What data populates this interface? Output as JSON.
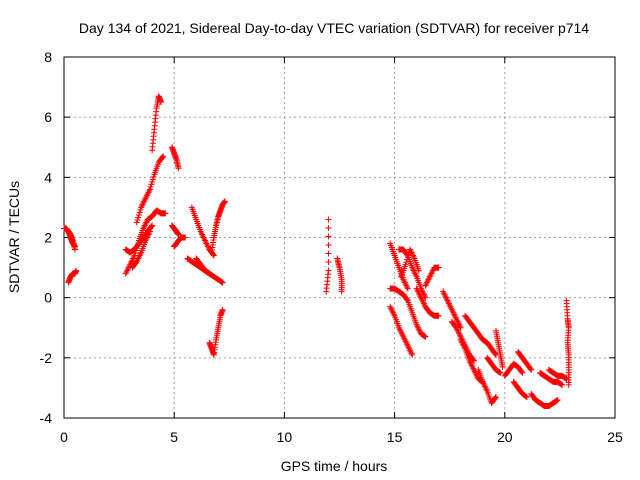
{
  "chart_data": {
    "type": "scatter",
    "title": "Day 134 of 2021, Sidereal Day-to-day VTEC variation (SDTVAR) for receiver p714",
    "xlabel": "GPS time / hours",
    "ylabel": "SDTVAR / TECUs",
    "xlim": [
      0,
      25
    ],
    "ylim": [
      -4,
      8
    ],
    "xticks": [
      0,
      5,
      10,
      15,
      20,
      25
    ],
    "yticks": [
      -4,
      -2,
      0,
      2,
      4,
      6,
      8
    ],
    "grid": true,
    "marker": "+",
    "series": [
      {
        "name": "SDTVAR",
        "color": "#ff0000",
        "segments": [
          [
            [
              0.0,
              2.3
            ],
            [
              0.1,
              2.3
            ],
            [
              0.2,
              2.2
            ],
            [
              0.3,
              2.1
            ],
            [
              0.4,
              1.9
            ],
            [
              0.5,
              1.6
            ]
          ],
          [
            [
              0.2,
              2.2
            ],
            [
              0.3,
              2.0
            ],
            [
              0.4,
              1.8
            ],
            [
              0.5,
              1.7
            ]
          ],
          [
            [
              0.2,
              0.5
            ],
            [
              0.3,
              0.7
            ],
            [
              0.4,
              0.8
            ],
            [
              0.5,
              0.8
            ],
            [
              0.55,
              0.9
            ]
          ],
          [
            [
              2.8,
              1.6
            ],
            [
              3.0,
              1.5
            ],
            [
              3.2,
              1.6
            ],
            [
              3.4,
              1.8
            ],
            [
              3.6,
              2.0
            ],
            [
              3.8,
              2.2
            ],
            [
              4.0,
              2.4
            ]
          ],
          [
            [
              2.8,
              0.8
            ],
            [
              3.0,
              1.1
            ],
            [
              3.2,
              1.4
            ],
            [
              3.4,
              1.9
            ],
            [
              3.6,
              2.3
            ],
            [
              3.8,
              2.6
            ],
            [
              4.0,
              2.7
            ],
            [
              4.2,
              2.9
            ],
            [
              4.4,
              2.8
            ],
            [
              4.6,
              2.8
            ]
          ],
          [
            [
              3.3,
              2.5
            ],
            [
              3.5,
              3.0
            ],
            [
              3.7,
              3.3
            ],
            [
              3.9,
              3.6
            ],
            [
              4.1,
              4.1
            ],
            [
              4.3,
              4.5
            ],
            [
              4.5,
              4.7
            ]
          ],
          [
            [
              4.0,
              4.9
            ],
            [
              4.1,
              5.6
            ],
            [
              4.2,
              6.3
            ],
            [
              4.3,
              6.7
            ],
            [
              4.4,
              6.5
            ]
          ],
          [
            [
              3.1,
              1.0
            ],
            [
              3.3,
              1.2
            ],
            [
              3.5,
              1.5
            ],
            [
              3.7,
              1.9
            ],
            [
              3.9,
              2.2
            ]
          ],
          [
            [
              4.9,
              5.0
            ],
            [
              5.0,
              4.8
            ],
            [
              5.1,
              4.6
            ],
            [
              5.2,
              4.3
            ]
          ],
          [
            [
              4.9,
              2.4
            ],
            [
              5.0,
              2.3
            ],
            [
              5.1,
              2.2
            ],
            [
              5.2,
              2.1
            ]
          ],
          [
            [
              5.0,
              1.7
            ],
            [
              5.1,
              1.8
            ],
            [
              5.3,
              2.0
            ],
            [
              5.5,
              2.0
            ]
          ],
          [
            [
              5.6,
              1.3
            ],
            [
              5.8,
              1.2
            ],
            [
              6.0,
              1.1
            ],
            [
              6.2,
              1.0
            ],
            [
              6.4,
              0.9
            ],
            [
              6.6,
              0.8
            ]
          ],
          [
            [
              5.8,
              3.0
            ],
            [
              6.0,
              2.6
            ],
            [
              6.2,
              2.2
            ],
            [
              6.4,
              1.9
            ],
            [
              6.6,
              1.6
            ],
            [
              6.8,
              1.4
            ]
          ],
          [
            [
              6.0,
              1.3
            ],
            [
              6.2,
              1.1
            ],
            [
              6.4,
              0.9
            ],
            [
              6.6,
              0.8
            ],
            [
              6.8,
              0.7
            ],
            [
              7.0,
              0.6
            ],
            [
              7.2,
              0.5
            ]
          ],
          [
            [
              6.7,
              1.5
            ],
            [
              6.8,
              2.0
            ],
            [
              6.9,
              2.4
            ],
            [
              7.0,
              2.7
            ],
            [
              7.1,
              2.9
            ],
            [
              7.2,
              3.1
            ],
            [
              7.3,
              3.2
            ]
          ],
          [
            [
              6.6,
              -1.5
            ],
            [
              6.7,
              -1.7
            ],
            [
              6.8,
              -1.9
            ],
            [
              6.9,
              -1.4
            ],
            [
              7.0,
              -1.0
            ],
            [
              7.1,
              -0.6
            ],
            [
              7.2,
              -0.4
            ]
          ],
          [
            [
              12.0,
              2.6
            ],
            [
              12.0,
              0.9
            ],
            [
              11.9,
              0.2
            ]
          ],
          [
            [
              12.4,
              1.3
            ],
            [
              12.5,
              1.0
            ],
            [
              12.6,
              0.6
            ],
            [
              12.6,
              0.2
            ]
          ],
          [
            [
              14.8,
              1.8
            ],
            [
              15.0,
              1.4
            ],
            [
              15.2,
              1.0
            ],
            [
              15.4,
              0.6
            ],
            [
              15.6,
              0.3
            ]
          ],
          [
            [
              14.8,
              0.3
            ],
            [
              15.0,
              0.3
            ],
            [
              15.2,
              0.2
            ],
            [
              15.4,
              0.1
            ],
            [
              15.6,
              -0.1
            ],
            [
              15.8,
              -0.5
            ],
            [
              16.0,
              -0.9
            ],
            [
              16.2,
              -1.2
            ],
            [
              16.4,
              -1.3
            ]
          ],
          [
            [
              14.8,
              -0.3
            ],
            [
              15.0,
              -0.6
            ],
            [
              15.2,
              -1.0
            ],
            [
              15.4,
              -1.3
            ],
            [
              15.6,
              -1.6
            ],
            [
              15.8,
              -1.9
            ]
          ],
          [
            [
              15.2,
              1.6
            ],
            [
              15.4,
              1.6
            ],
            [
              15.6,
              1.4
            ],
            [
              15.8,
              1.0
            ],
            [
              16.0,
              0.7
            ],
            [
              16.2,
              0.3
            ],
            [
              16.4,
              0.0
            ]
          ],
          [
            [
              15.3,
              0.7
            ],
            [
              15.5,
              1.1
            ],
            [
              15.7,
              1.6
            ],
            [
              15.9,
              1.3
            ],
            [
              16.1,
              0.9
            ]
          ],
          [
            [
              16.4,
              0.4
            ],
            [
              16.6,
              0.7
            ],
            [
              16.8,
              1.0
            ],
            [
              17.0,
              1.0
            ]
          ],
          [
            [
              16.0,
              0.3
            ],
            [
              16.2,
              0.0
            ],
            [
              16.4,
              -0.3
            ],
            [
              16.6,
              -0.5
            ],
            [
              16.8,
              -0.6
            ],
            [
              17.0,
              -0.6
            ]
          ],
          [
            [
              17.2,
              0.2
            ],
            [
              17.4,
              -0.1
            ],
            [
              17.6,
              -0.4
            ],
            [
              17.8,
              -0.7
            ],
            [
              18.0,
              -1.0
            ]
          ],
          [
            [
              17.6,
              -0.8
            ],
            [
              17.8,
              -1.0
            ],
            [
              18.0,
              -1.3
            ],
            [
              18.2,
              -1.6
            ],
            [
              18.4,
              -1.9
            ],
            [
              18.6,
              -2.1
            ]
          ],
          [
            [
              18.0,
              -1.4
            ],
            [
              18.2,
              -1.7
            ],
            [
              18.4,
              -2.1
            ],
            [
              18.6,
              -2.4
            ],
            [
              18.8,
              -2.7
            ],
            [
              19.0,
              -2.8
            ]
          ],
          [
            [
              18.2,
              -0.6
            ],
            [
              18.4,
              -0.8
            ],
            [
              18.6,
              -1.0
            ],
            [
              18.8,
              -1.2
            ],
            [
              19.0,
              -1.4
            ],
            [
              19.2,
              -1.5
            ],
            [
              19.4,
              -1.7
            ],
            [
              19.6,
              -1.9
            ]
          ],
          [
            [
              18.8,
              -2.4
            ],
            [
              19.0,
              -2.8
            ],
            [
              19.2,
              -3.1
            ],
            [
              19.4,
              -3.5
            ],
            [
              19.6,
              -3.3
            ]
          ],
          [
            [
              19.2,
              -2.0
            ],
            [
              19.4,
              -2.2
            ],
            [
              19.6,
              -2.4
            ],
            [
              19.8,
              -2.5
            ]
          ],
          [
            [
              19.6,
              -1.1
            ],
            [
              19.7,
              -1.5
            ],
            [
              19.8,
              -1.9
            ],
            [
              19.9,
              -2.3
            ]
          ],
          [
            [
              20.0,
              -2.6
            ],
            [
              20.2,
              -2.4
            ],
            [
              20.4,
              -2.2
            ],
            [
              20.6,
              -2.3
            ],
            [
              20.8,
              -2.5
            ]
          ],
          [
            [
              20.4,
              -2.8
            ],
            [
              20.6,
              -3.0
            ],
            [
              20.8,
              -3.2
            ],
            [
              21.0,
              -3.3
            ]
          ],
          [
            [
              20.6,
              -1.8
            ],
            [
              20.8,
              -2.0
            ],
            [
              21.0,
              -2.2
            ],
            [
              21.2,
              -2.4
            ]
          ],
          [
            [
              21.2,
              -3.2
            ],
            [
              21.4,
              -3.4
            ],
            [
              21.6,
              -3.5
            ],
            [
              21.8,
              -3.6
            ],
            [
              22.0,
              -3.6
            ],
            [
              22.2,
              -3.5
            ],
            [
              22.4,
              -3.4
            ]
          ],
          [
            [
              21.6,
              -2.5
            ],
            [
              21.8,
              -2.6
            ],
            [
              22.0,
              -2.7
            ],
            [
              22.2,
              -2.8
            ],
            [
              22.4,
              -2.8
            ],
            [
              22.6,
              -2.9
            ]
          ],
          [
            [
              22.0,
              -2.4
            ],
            [
              22.2,
              -2.5
            ],
            [
              22.4,
              -2.6
            ],
            [
              22.6,
              -2.6
            ],
            [
              22.8,
              -2.7
            ]
          ],
          [
            [
              22.8,
              -0.1
            ],
            [
              22.85,
              -0.7
            ],
            [
              22.9,
              -1.0
            ],
            [
              22.85,
              -1.5
            ],
            [
              22.9,
              -1.9
            ],
            [
              22.9,
              -2.4
            ],
            [
              22.9,
              -2.9
            ]
          ]
        ]
      }
    ]
  }
}
